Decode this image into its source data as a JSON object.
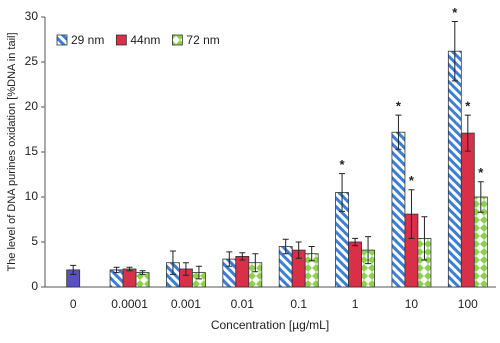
{
  "chart_data": {
    "type": "bar",
    "x_label": "Concentration [µg/mL]",
    "y_label": "The level of DNA purines  oxidation [%DNA in tail]",
    "categories": [
      "0",
      "0.0001",
      "0.001",
      "0.01",
      "0.1",
      "1",
      "10",
      "100"
    ],
    "ylim": [
      0,
      30
    ],
    "yticks": [
      0,
      5,
      10,
      15,
      20,
      25,
      30
    ],
    "legend": "upper left",
    "series": [
      {
        "name": "29 nm",
        "color": "#3a7fd5",
        "fill": "stripes",
        "values": [
          null,
          1.9,
          2.7,
          3.1,
          4.5,
          10.5,
          17.2,
          26.2
        ],
        "errors": [
          null,
          0.3,
          1.3,
          0.8,
          0.8,
          2.1,
          1.9,
          3.3
        ]
      },
      {
        "name": "44nm",
        "color": "#d9304a",
        "fill": "solid",
        "values": [
          null,
          2.0,
          2.0,
          3.4,
          4.1,
          5.0,
          8.1,
          17.1
        ],
        "errors": [
          null,
          0.2,
          0.7,
          0.4,
          0.9,
          0.4,
          2.7,
          2.0
        ]
      },
      {
        "name": "72 nm",
        "color": "#8fd14f",
        "fill": "diamonds",
        "values": [
          null,
          1.6,
          1.6,
          2.7,
          3.7,
          4.1,
          5.4,
          10.0
        ],
        "errors": [
          null,
          0.2,
          0.7,
          1.0,
          0.8,
          1.5,
          2.4,
          1.7
        ]
      },
      {
        "color": "#5a4fc4",
        "fill": "solid",
        "values": [
          1.9,
          null,
          null,
          null,
          null,
          null,
          null,
          null
        ],
        "errors": [
          0.5,
          null,
          null,
          null,
          null,
          null,
          null,
          null
        ]
      }
    ],
    "annotations": [
      {
        "text": "*",
        "series": 0,
        "index": 5
      },
      {
        "text": "*",
        "series": 0,
        "index": 6
      },
      {
        "text": "*",
        "series": 0,
        "index": 7
      },
      {
        "text": "*",
        "series": 1,
        "index": 6
      },
      {
        "text": "*",
        "series": 1,
        "index": 7
      },
      {
        "text": "*",
        "series": 2,
        "index": 7
      }
    ]
  }
}
